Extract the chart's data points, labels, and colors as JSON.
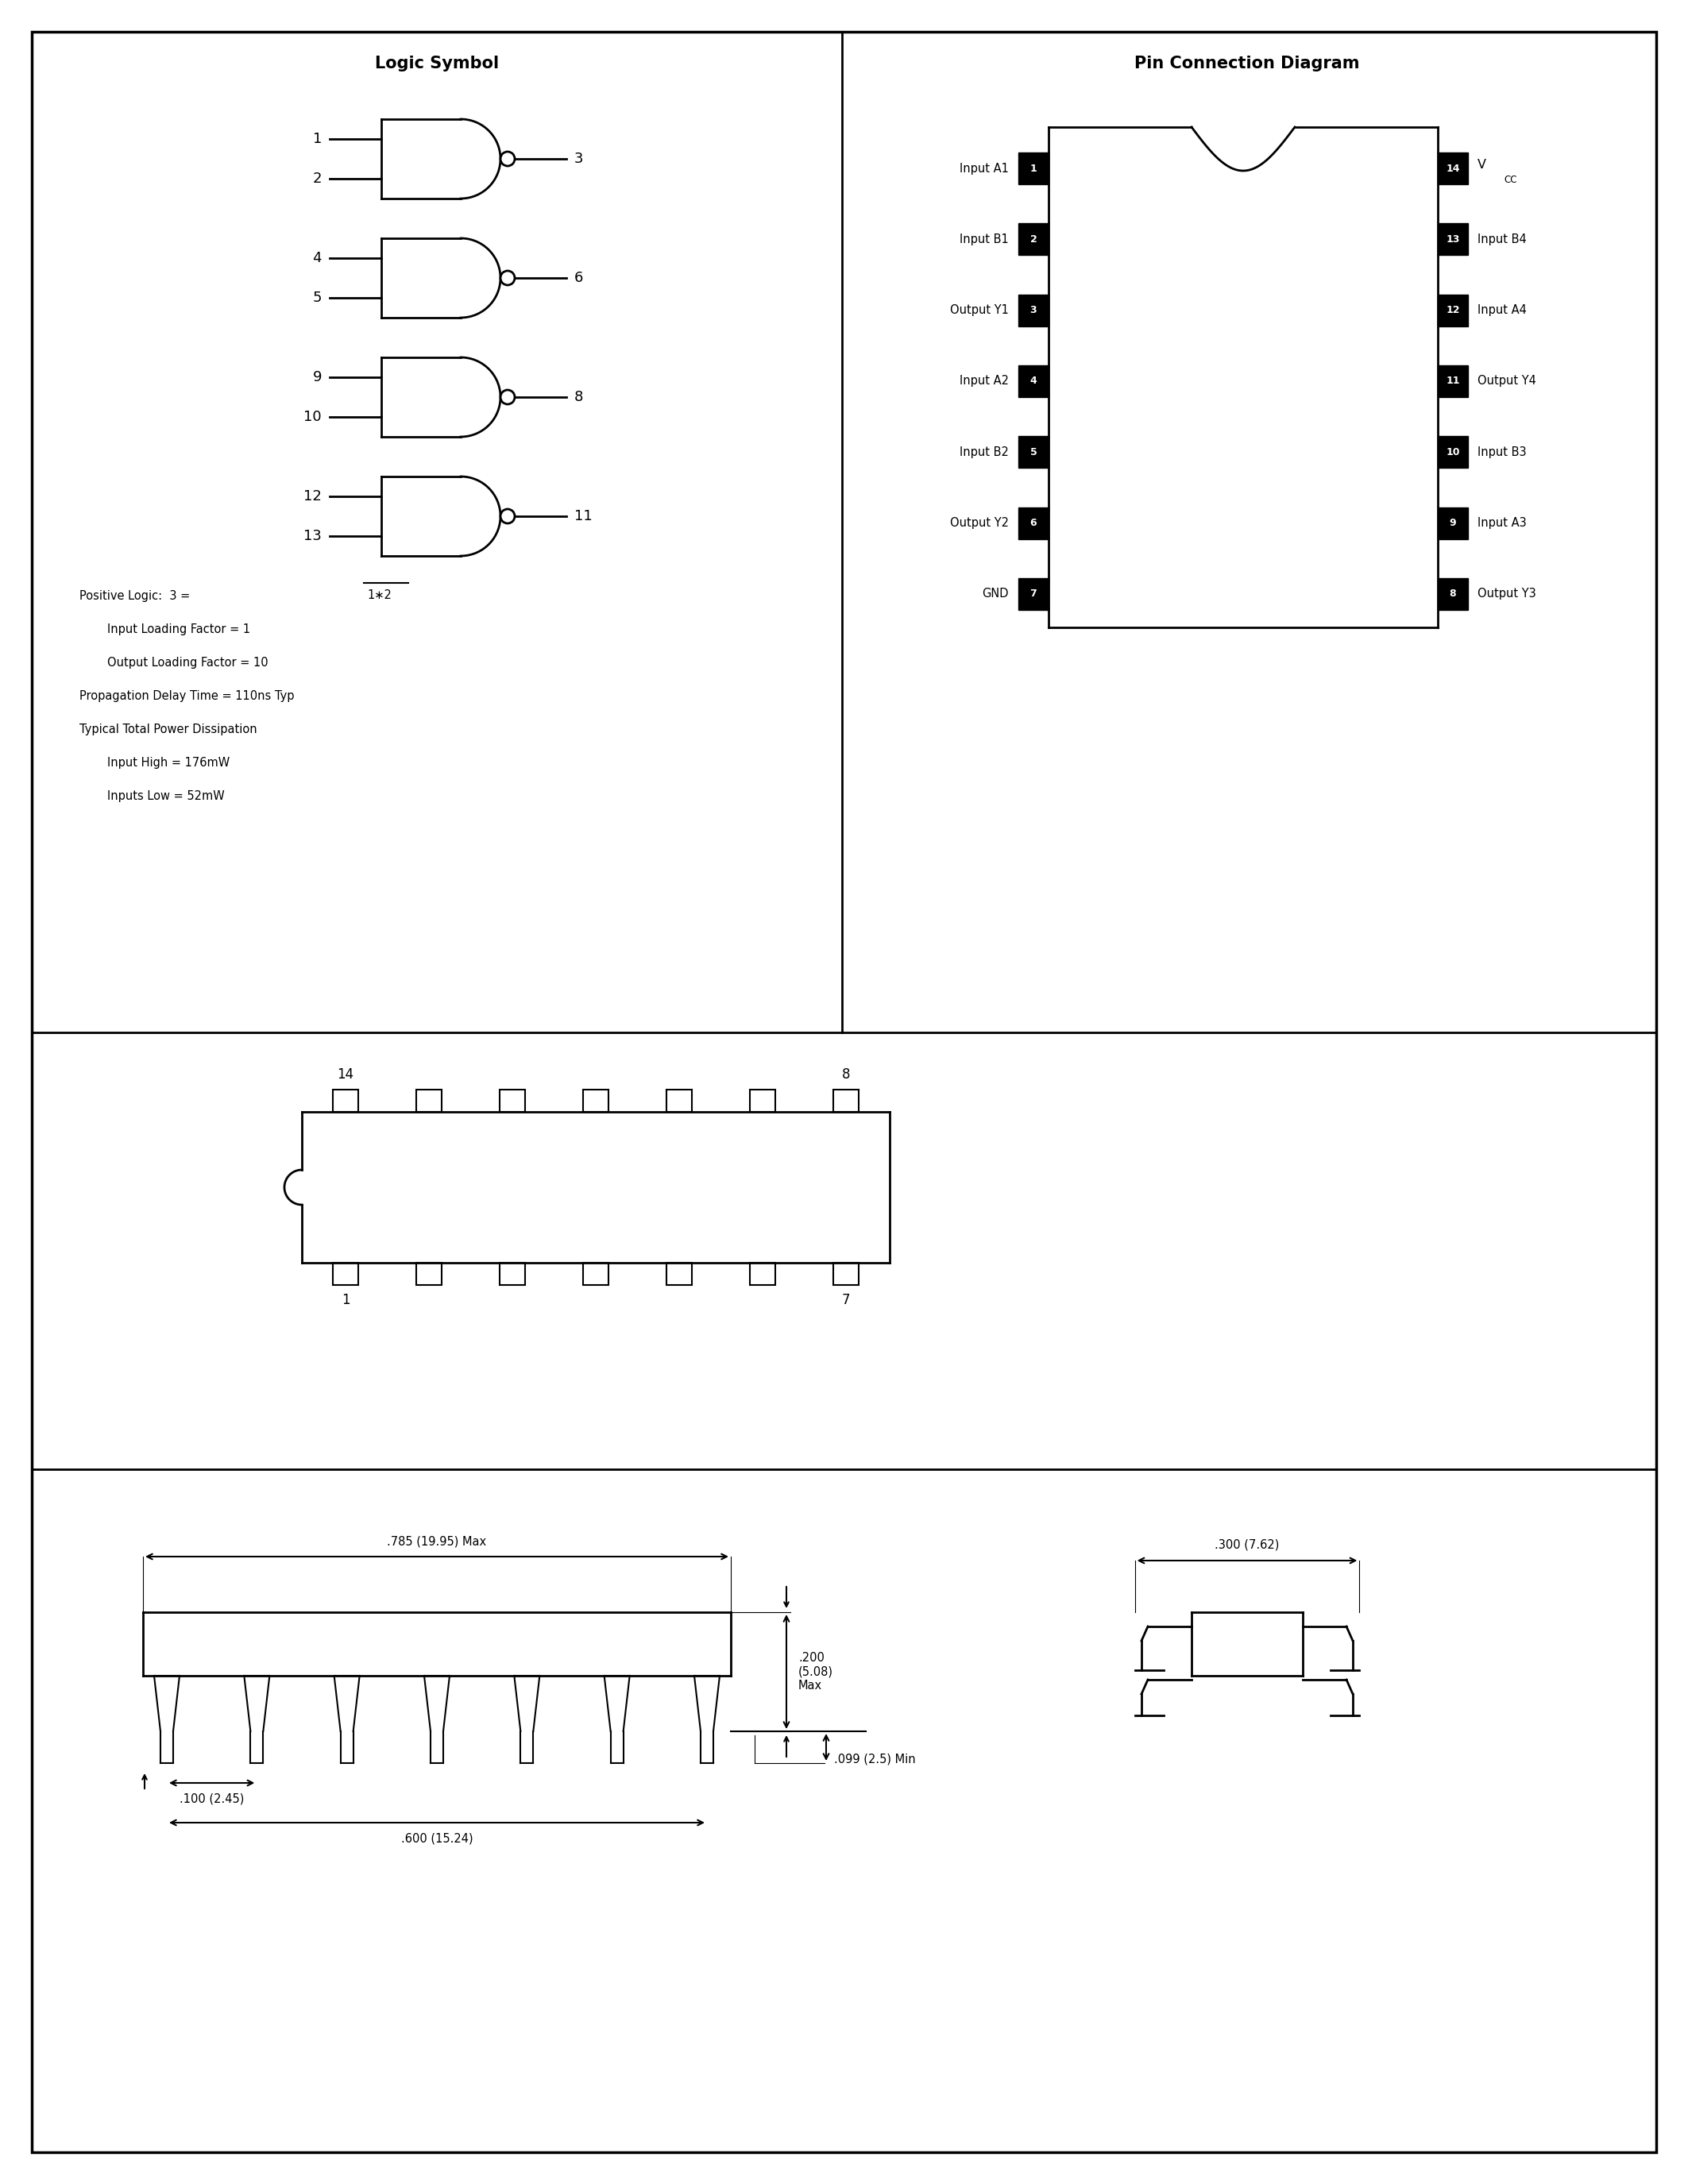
{
  "bg_color": "#ffffff",
  "title_logic": "Logic Symbol",
  "title_pin": "Pin Connection Diagram",
  "gates": [
    {
      "in1": "1",
      "in2": "2",
      "out": "3"
    },
    {
      "in1": "4",
      "in2": "5",
      "out": "6"
    },
    {
      "in1": "9",
      "in2": "10",
      "out": "8"
    },
    {
      "in1": "12",
      "in2": "13",
      "out": "11"
    }
  ],
  "pin_left": [
    "Input A1",
    "Input B1",
    "Output Y1",
    "Input A2",
    "Input B2",
    "Output Y2",
    "GND"
  ],
  "pin_left_nums": [
    "1",
    "2",
    "3",
    "4",
    "5",
    "6",
    "7"
  ],
  "pin_right_labels": [
    "V",
    "Input B4",
    "Input A4",
    "Output Y4",
    "Input B3",
    "Input A3",
    "Output Y3"
  ],
  "pin_right_nums": [
    "14",
    "13",
    "12",
    "11",
    "10",
    "9",
    "8"
  ]
}
